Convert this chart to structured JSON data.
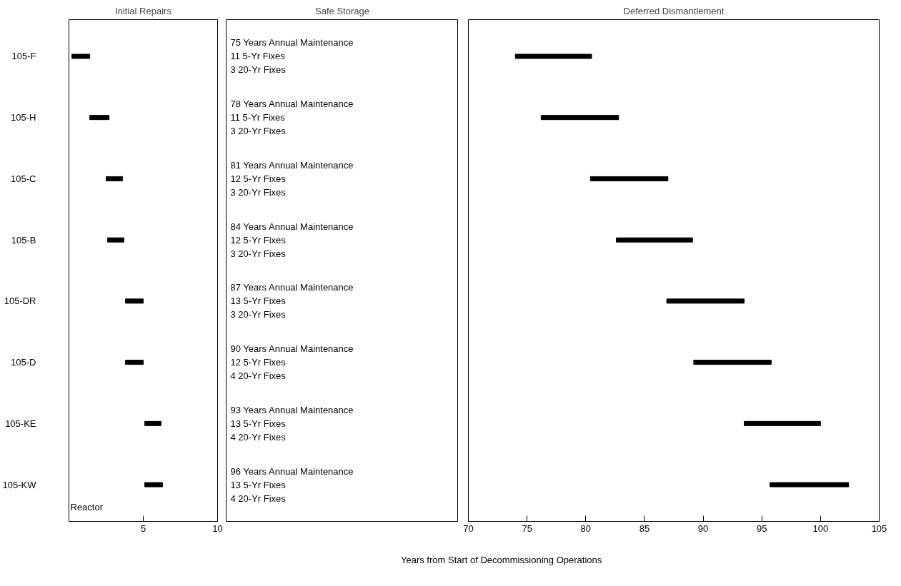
{
  "chart_data": [
    {
      "type": "bar",
      "title": "Initial Repairs",
      "ylabel": "Reactor",
      "orientation": "horizontal",
      "categories": [
        "105-F",
        "105-H",
        "105-C",
        "105-B",
        "105-DR",
        "105-D",
        "105-KE",
        "105-KW"
      ],
      "base": [
        0.2,
        1.4,
        2.5,
        2.6,
        3.8,
        3.8,
        5.1,
        5.1
      ],
      "values": [
        1.2,
        1.3,
        1.1,
        1.1,
        1.2,
        1.2,
        1.1,
        1.2
      ],
      "color": "#000000",
      "xlim": [
        0,
        10
      ],
      "xticks": [
        5,
        10
      ]
    },
    {
      "type": "other",
      "title": "Safe Storage",
      "xlabel": "Years from Start of Decommissioning Operations",
      "annotations": [
        "75 Years Annual Maintenance",
        "11 5-Yr Fixes",
        "3 20-Yr Fixes",
        "78 Years Annual Maintenance",
        "11 5-Yr Fixes",
        "3 20-Yr Fixes",
        "81 Years Annual Maintenance",
        "12 5-Yr Fixes",
        "3 20-Yr Fixes",
        "84 Years Annual Maintenance",
        "12 5-Yr Fixes",
        "3 20-Yr Fixes",
        "87 Years Annual Maintenance",
        "13 5-Yr Fixes",
        "3 20-Yr Fixes",
        "90 Years Annual Maintenance",
        "12 5-Yr Fixes",
        "4 20-Yr Fixes",
        "93 Years Annual Maintenance",
        "13 5-Yr Fixes",
        "4 20-Yr Fixes",
        "96 Years Annual Maintenance",
        "13 5-Yr Fixes",
        "4 20-Yr Fixes"
      ]
    },
    {
      "type": "bar",
      "title": "Deferred Dismantlement",
      "orientation": "horizontal",
      "base": [
        74.0,
        76.2,
        80.4,
        82.6,
        86.9,
        89.2,
        93.5,
        95.7
      ],
      "values": [
        6.5,
        6.6,
        6.6,
        6.5,
        6.6,
        6.6,
        6.5,
        6.7
      ],
      "color": "#000000",
      "xlim": [
        70,
        105
      ],
      "xticks": [
        70,
        75,
        80,
        85,
        90,
        95,
        100,
        105
      ]
    }
  ]
}
